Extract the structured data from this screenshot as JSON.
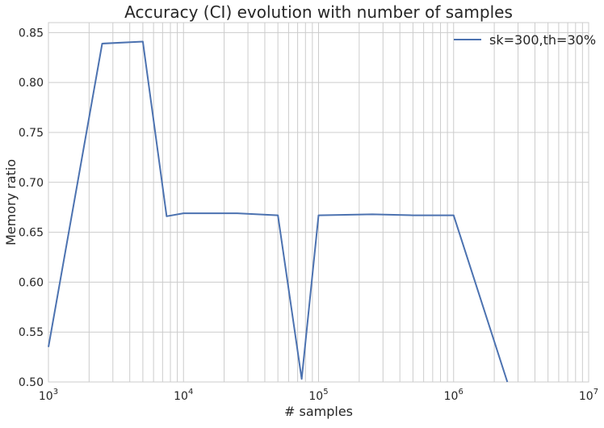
{
  "chart_data": {
    "type": "line",
    "title": "Accuracy (CI) evolution with number of samples",
    "xlabel": "# samples",
    "ylabel": "Memory ratio",
    "x_scale": "log",
    "xlim": [
      1000,
      10000000
    ],
    "ylim": [
      0.5,
      0.86
    ],
    "x_ticks": [
      {
        "value": 1000,
        "base": "10",
        "exp": "3"
      },
      {
        "value": 10000,
        "base": "10",
        "exp": "4"
      },
      {
        "value": 100000,
        "base": "10",
        "exp": "5"
      },
      {
        "value": 1000000,
        "base": "10",
        "exp": "6"
      },
      {
        "value": 10000000,
        "base": "10",
        "exp": "7"
      }
    ],
    "y_ticks": [
      {
        "value": 0.5,
        "label": "0.50"
      },
      {
        "value": 0.55,
        "label": "0.55"
      },
      {
        "value": 0.6,
        "label": "0.60"
      },
      {
        "value": 0.65,
        "label": "0.65"
      },
      {
        "value": 0.7,
        "label": "0.70"
      },
      {
        "value": 0.75,
        "label": "0.75"
      },
      {
        "value": 0.8,
        "label": "0.80"
      },
      {
        "value": 0.85,
        "label": "0.85"
      }
    ],
    "grid": true,
    "legend_position": "top-right",
    "series": [
      {
        "name": "sk=300,th=30%",
        "color": "#4c72b0",
        "x": [
          1000,
          2500,
          5000,
          7500,
          10000,
          25000,
          50000,
          75000,
          100000,
          250000,
          500000,
          750000,
          1000000,
          2500000
        ],
        "y": [
          0.535,
          0.839,
          0.841,
          0.666,
          0.669,
          0.669,
          0.667,
          0.503,
          0.667,
          0.668,
          0.667,
          0.667,
          0.667,
          0.5
        ]
      }
    ]
  }
}
